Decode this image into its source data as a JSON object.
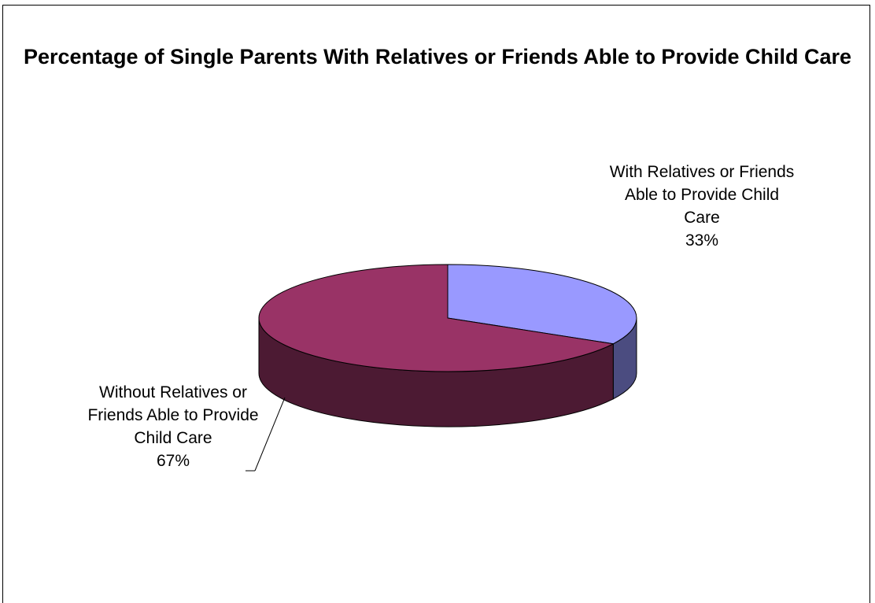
{
  "chart_data": {
    "type": "pie",
    "title": "Percentage of Single Parents With Relatives or Friends Able to Provide Child Care",
    "slices": [
      {
        "label": "With Relatives or Friends Able to Provide Child Care",
        "percent_label": "33%",
        "value": 33,
        "color": "#9999ff",
        "side_color": "#4b4c80"
      },
      {
        "label": "Without Relatives or Friends Able to Provide Child Care",
        "percent_label": "67%",
        "value": 67,
        "color": "#993366",
        "side_color": "#4c1a33"
      }
    ],
    "style": "3d",
    "legend": "none"
  }
}
